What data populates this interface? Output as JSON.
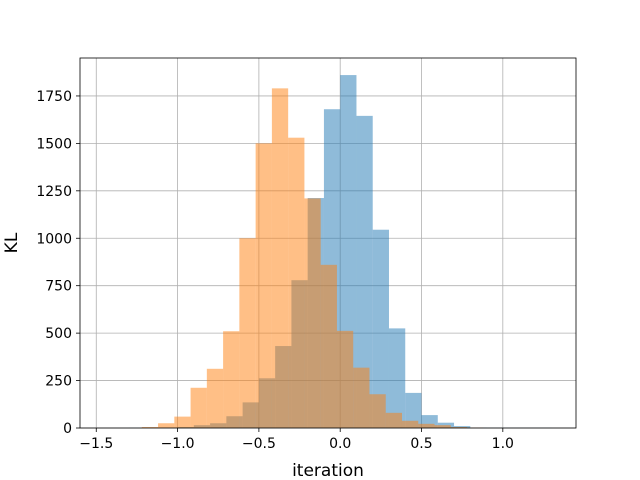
{
  "chart_data": {
    "type": "bar",
    "chart_kind": "histogram (two overlaid, semi-transparent)",
    "title": "",
    "xlabel": "iteration",
    "ylabel": "KL",
    "xlim": [
      -1.6,
      1.45
    ],
    "ylim": [
      0,
      1950
    ],
    "xticks": [
      -1.5,
      -1.0,
      -0.5,
      0.0,
      0.5,
      1.0
    ],
    "xtick_labels": [
      "−1.5",
      "−1.0",
      "−0.5",
      "0.0",
      "0.5",
      "1.0"
    ],
    "yticks": [
      0,
      250,
      500,
      750,
      1000,
      1250,
      1500,
      1750
    ],
    "ytick_labels": [
      "0",
      "250",
      "500",
      "750",
      "1000",
      "1250",
      "1500",
      "1750"
    ],
    "grid": true,
    "legend": "none",
    "series": [
      {
        "color": "#1f77b4",
        "alpha": 0.5,
        "bin_edges": [
          -1.3,
          -1.2,
          -1.1,
          -1.0,
          -0.9,
          -0.8,
          -0.7,
          -0.6,
          -0.5,
          -0.4,
          -0.3,
          -0.2,
          -0.1,
          0.0,
          0.1,
          0.2,
          0.3,
          0.4,
          0.5,
          0.6,
          0.7,
          0.8,
          0.9,
          1.0,
          1.1,
          1.2,
          1.3
        ],
        "counts": [
          1,
          1,
          2,
          5,
          15,
          25,
          62,
          135,
          262,
          432,
          779,
          1212,
          1680,
          1860,
          1645,
          1045,
          525,
          185,
          68,
          28,
          10,
          2,
          1,
          1,
          1,
          1
        ]
      },
      {
        "color": "#ff7f0e",
        "alpha": 0.5,
        "bin_edges": [
          -1.22,
          -1.12,
          -1.02,
          -0.92,
          -0.82,
          -0.72,
          -0.62,
          -0.52,
          -0.42,
          -0.32,
          -0.22,
          -0.12,
          -0.02,
          0.08,
          0.18,
          0.28,
          0.38,
          0.48,
          0.58,
          0.68,
          0.78,
          0.88
        ],
        "counts": [
          5,
          25,
          60,
          212,
          312,
          510,
          1000,
          1500,
          1790,
          1530,
          1210,
          860,
          512,
          318,
          178,
          80,
          38,
          22,
          15,
          5,
          2
        ]
      }
    ]
  }
}
